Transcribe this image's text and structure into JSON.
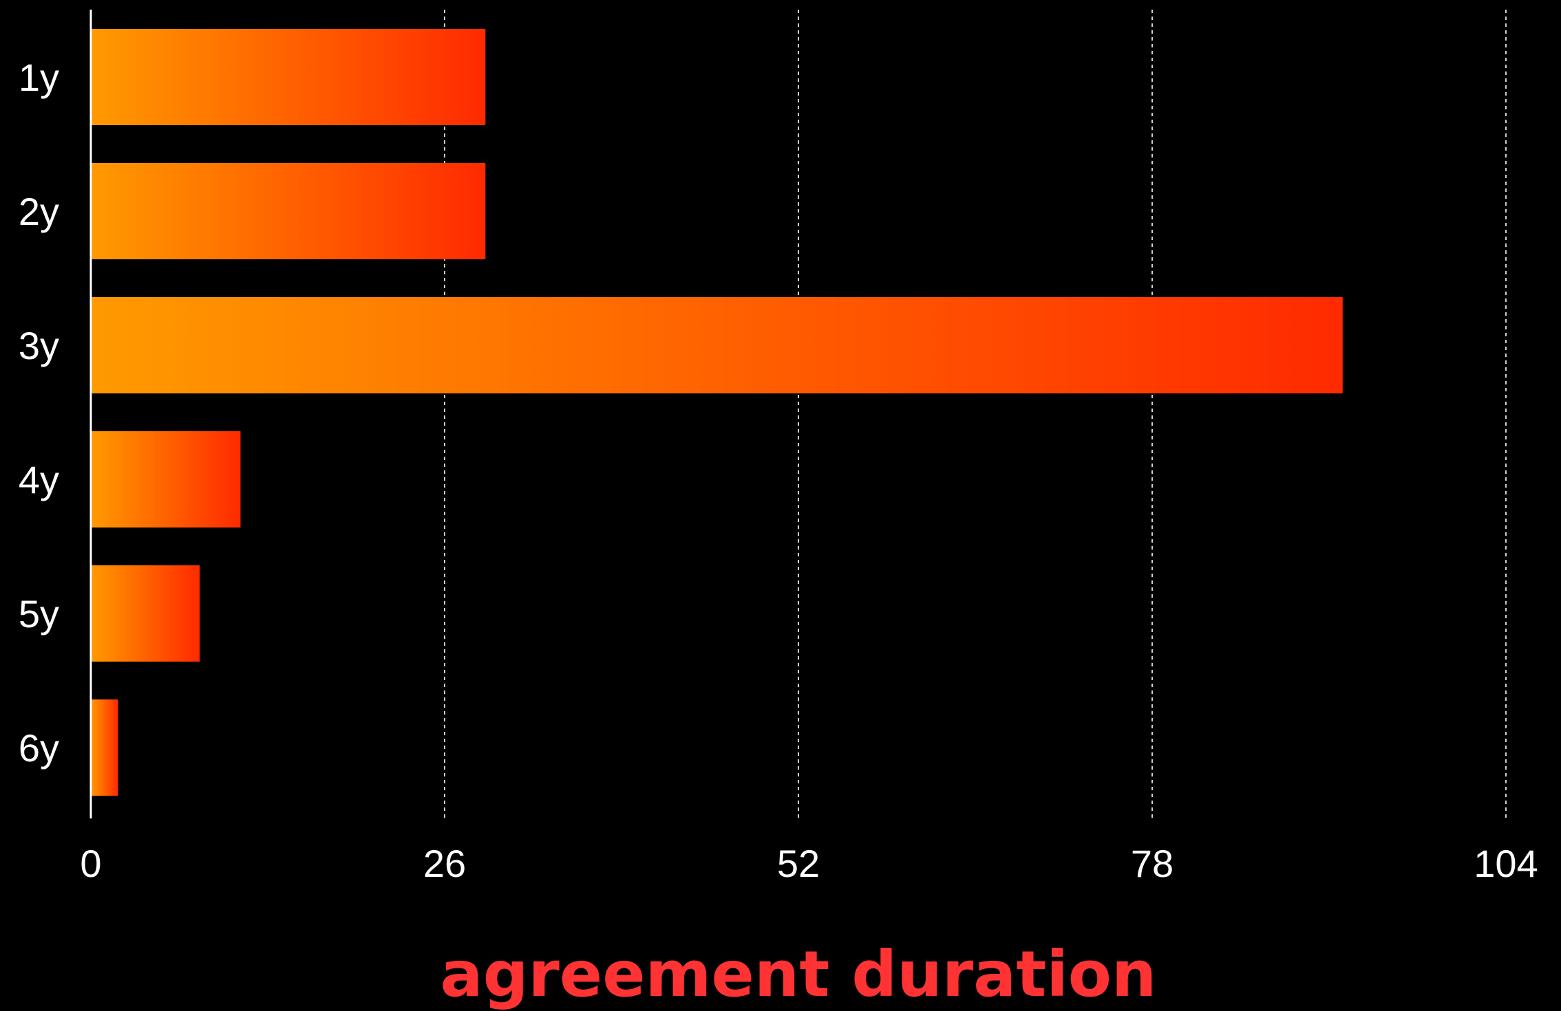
{
  "chart_data": {
    "type": "bar",
    "orientation": "horizontal",
    "categories": [
      "1y",
      "2y",
      "3y",
      "4y",
      "5y",
      "6y"
    ],
    "values": [
      29,
      29,
      92,
      11,
      8,
      2
    ],
    "xlabel": "agreement duration",
    "ylabel": "",
    "title": "",
    "xlim": [
      0,
      104
    ],
    "xticks": [
      "0",
      "26",
      "52",
      "78",
      "104"
    ],
    "grid": "vertical dashed",
    "legend": "none",
    "colors": {
      "background": "#000000",
      "bar_start": "#ff9a00",
      "bar_end": "#ff2a00",
      "text": "#ffffff",
      "axis_title": "#ff3333",
      "grid": "#cfcfcf",
      "axis": "#ffffff"
    }
  }
}
